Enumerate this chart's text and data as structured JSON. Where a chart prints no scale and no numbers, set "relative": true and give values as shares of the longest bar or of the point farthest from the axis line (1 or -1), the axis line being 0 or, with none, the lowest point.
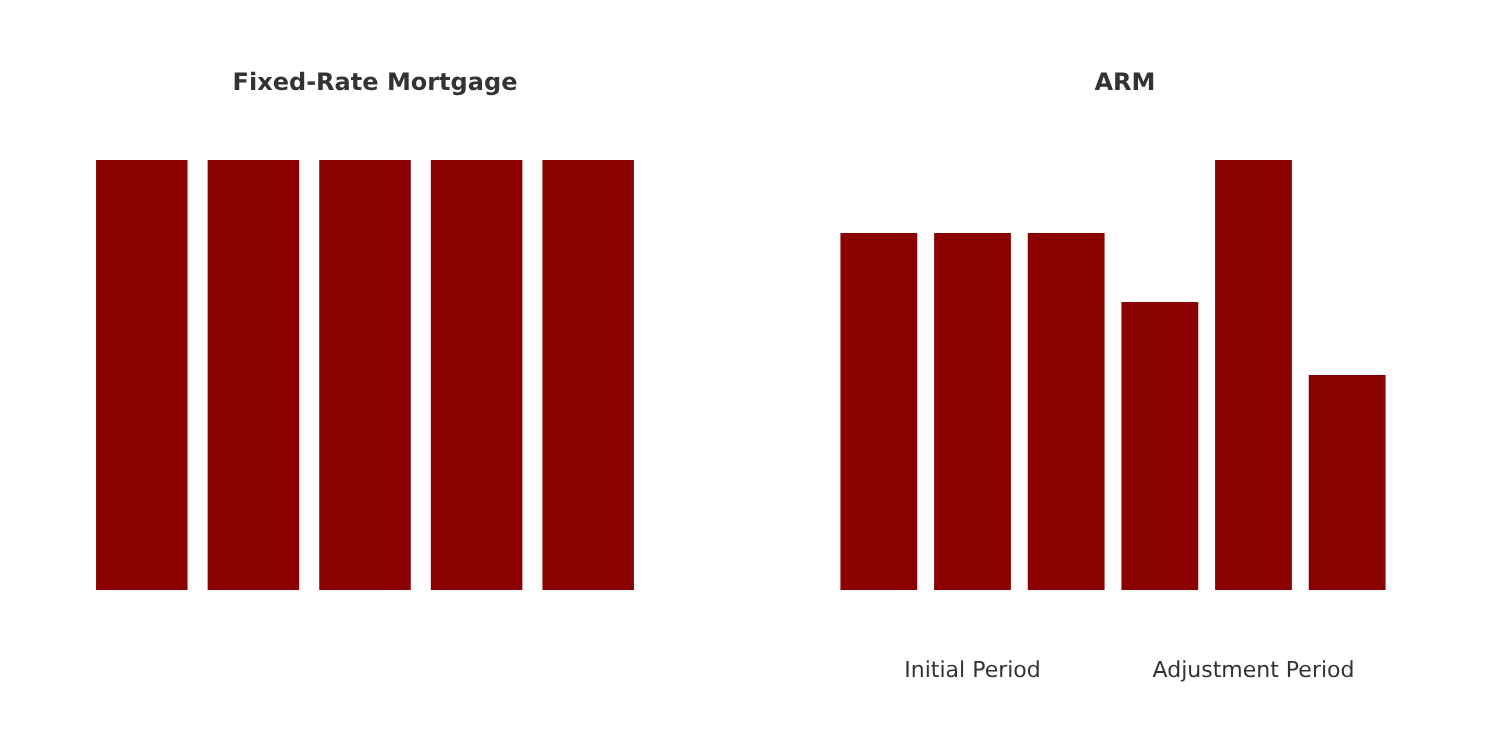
{
  "chart_data": [
    {
      "type": "bar",
      "title": "Fixed-Rate Mortgage",
      "categories": [
        null,
        null,
        null,
        null,
        null
      ],
      "relative": true,
      "color": "#8b0000",
      "values": [
        1,
        1,
        1,
        1,
        1
      ]
    },
    {
      "type": "bar",
      "title": "ARM",
      "categories": [
        null,
        null,
        null,
        null,
        null,
        null
      ],
      "relative": true,
      "color": "#8b0000",
      "values": [
        0.83,
        0.83,
        0.83,
        0.67,
        1,
        0.5
      ],
      "annotations": [
        "Initial Period",
        "Adjustment Period"
      ]
    }
  ]
}
